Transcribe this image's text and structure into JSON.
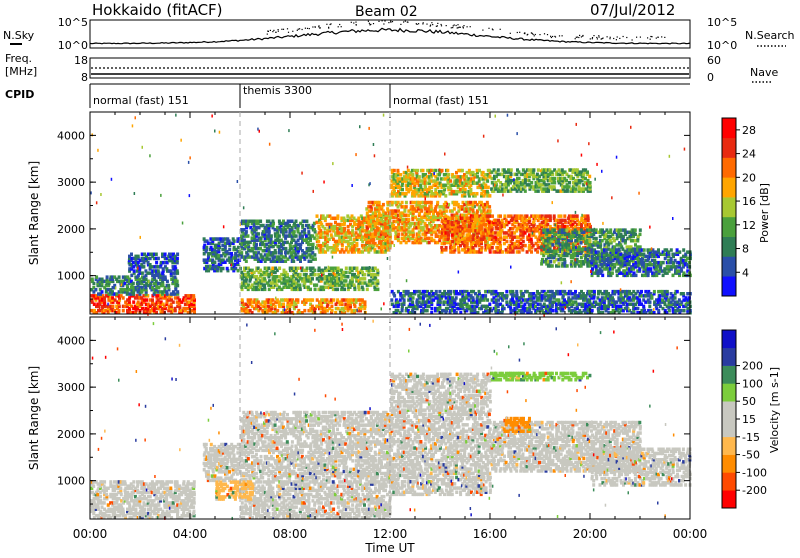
{
  "header": {
    "station": "Hokkaido (fitACF)",
    "beam": "Beam 02",
    "date": "07/Jul/2012"
  },
  "left_labels": {
    "nsky": "N.Sky",
    "freq_line1": "Freq.",
    "freq_line2": "[MHz]",
    "cpid": "CPID"
  },
  "right_labels": {
    "nsearch": "N.Search",
    "nave": "Nave"
  },
  "noise_axis": {
    "left_top": "10^5",
    "left_bottom": "10^0",
    "right_top": "10^5",
    "right_bottom": "10^0"
  },
  "freq_axis": {
    "left_top": "18",
    "left_bottom": "8",
    "right_top": "60",
    "right_bottom": "0"
  },
  "cpid_segments": [
    {
      "label": "normal (fast) 151",
      "start_hour": 0
    },
    {
      "label": "themis 3300",
      "start_hour": 6
    },
    {
      "label": "normal (fast) 151",
      "start_hour": 12
    }
  ],
  "x_axis": {
    "label": "Time UT",
    "ticks": [
      "00:00",
      "04:00",
      "08:00",
      "12:00",
      "16:00",
      "20:00",
      "00:00"
    ]
  },
  "colors": {
    "power_scale": [
      "#1010ff",
      "#2a4fa8",
      "#2f7d55",
      "#4aa03c",
      "#a7c832",
      "#ffa500",
      "#ff6a00",
      "#e82a10",
      "#ff0000"
    ],
    "velocity_scale": [
      "#ff0000",
      "#ff4a00",
      "#ff8c00",
      "#ffb84d",
      "#c8c8c0",
      "#c8c8c0",
      "#7ccd3c",
      "#3c8c5a",
      "#2a3ca0",
      "#1010c8"
    ]
  },
  "chart_data": [
    {
      "type": "heatmap",
      "name": "power-panel",
      "ylabel": "Slant Range [km]",
      "yticks": [
        "1000",
        "2000",
        "3000",
        "4000"
      ],
      "ylim": [
        180,
        4500
      ],
      "xlim_hours": [
        0,
        24
      ],
      "colorbar": {
        "label": "Power [dB]",
        "ticks": [
          "4",
          "8",
          "12",
          "16",
          "20",
          "24",
          "28"
        ],
        "range": [
          0,
          30
        ]
      },
      "echo_bands": [
        {
          "t": [
            0,
            4.2
          ],
          "r": [
            200,
            600
          ],
          "value": 24
        },
        {
          "t": [
            0,
            3.5
          ],
          "r": [
            600,
            1000
          ],
          "value": 8
        },
        {
          "t": [
            1.5,
            3.5
          ],
          "r": [
            1000,
            1500
          ],
          "value": 5
        },
        {
          "t": [
            4.5,
            6
          ],
          "r": [
            1100,
            1800
          ],
          "value": 6
        },
        {
          "t": [
            6,
            11
          ],
          "r": [
            200,
            500
          ],
          "value": 20
        },
        {
          "t": [
            6,
            11.5
          ],
          "r": [
            700,
            1200
          ],
          "value": 12
        },
        {
          "t": [
            6,
            9
          ],
          "r": [
            1300,
            2200
          ],
          "value": 8
        },
        {
          "t": [
            9,
            12
          ],
          "r": [
            1500,
            2300
          ],
          "value": 18
        },
        {
          "t": [
            11,
            16
          ],
          "r": [
            1700,
            2600
          ],
          "value": 19
        },
        {
          "t": [
            12,
            16
          ],
          "r": [
            2700,
            3300
          ],
          "value": 16
        },
        {
          "t": [
            14,
            20
          ],
          "r": [
            1500,
            2300
          ],
          "value": 22
        },
        {
          "t": [
            16,
            20
          ],
          "r": [
            2800,
            3300
          ],
          "value": 12
        },
        {
          "t": [
            18,
            22
          ],
          "r": [
            1200,
            2000
          ],
          "value": 10
        },
        {
          "t": [
            20,
            24
          ],
          "r": [
            1000,
            1600
          ],
          "value": 7
        },
        {
          "t": [
            12,
            24
          ],
          "r": [
            200,
            700
          ],
          "value": 6
        }
      ]
    },
    {
      "type": "heatmap",
      "name": "velocity-panel",
      "ylabel": "Slant Range [km]",
      "yticks": [
        "1000",
        "2000",
        "3000",
        "4000"
      ],
      "ylim": [
        180,
        4500
      ],
      "xlim_hours": [
        0,
        24
      ],
      "colorbar": {
        "label": "Velocity [m s-1]",
        "ticks": [
          "-200",
          "-100",
          "-50",
          "-15",
          "15",
          "50",
          "100",
          "200"
        ],
        "range": [
          -250,
          250
        ]
      },
      "echo_bands": [
        {
          "t": [
            0,
            4.2
          ],
          "r": [
            200,
            1000
          ],
          "value": 0
        },
        {
          "t": [
            4.5,
            6
          ],
          "r": [
            1000,
            1800
          ],
          "value": 0
        },
        {
          "t": [
            6,
            12
          ],
          "r": [
            200,
            2500
          ],
          "value": 0
        },
        {
          "t": [
            12,
            16
          ],
          "r": [
            700,
            3300
          ],
          "value": 0
        },
        {
          "t": [
            16,
            22
          ],
          "r": [
            1200,
            2300
          ],
          "value": 0
        },
        {
          "t": [
            20,
            24
          ],
          "r": [
            900,
            1700
          ],
          "value": 0
        },
        {
          "t": [
            16.5,
            17.6
          ],
          "r": [
            2050,
            2350
          ],
          "value": -60
        },
        {
          "t": [
            16,
            20
          ],
          "r": [
            3150,
            3350
          ],
          "value": 40
        },
        {
          "t": [
            5,
            6.5
          ],
          "r": [
            600,
            1000
          ],
          "value": -40
        }
      ]
    }
  ]
}
